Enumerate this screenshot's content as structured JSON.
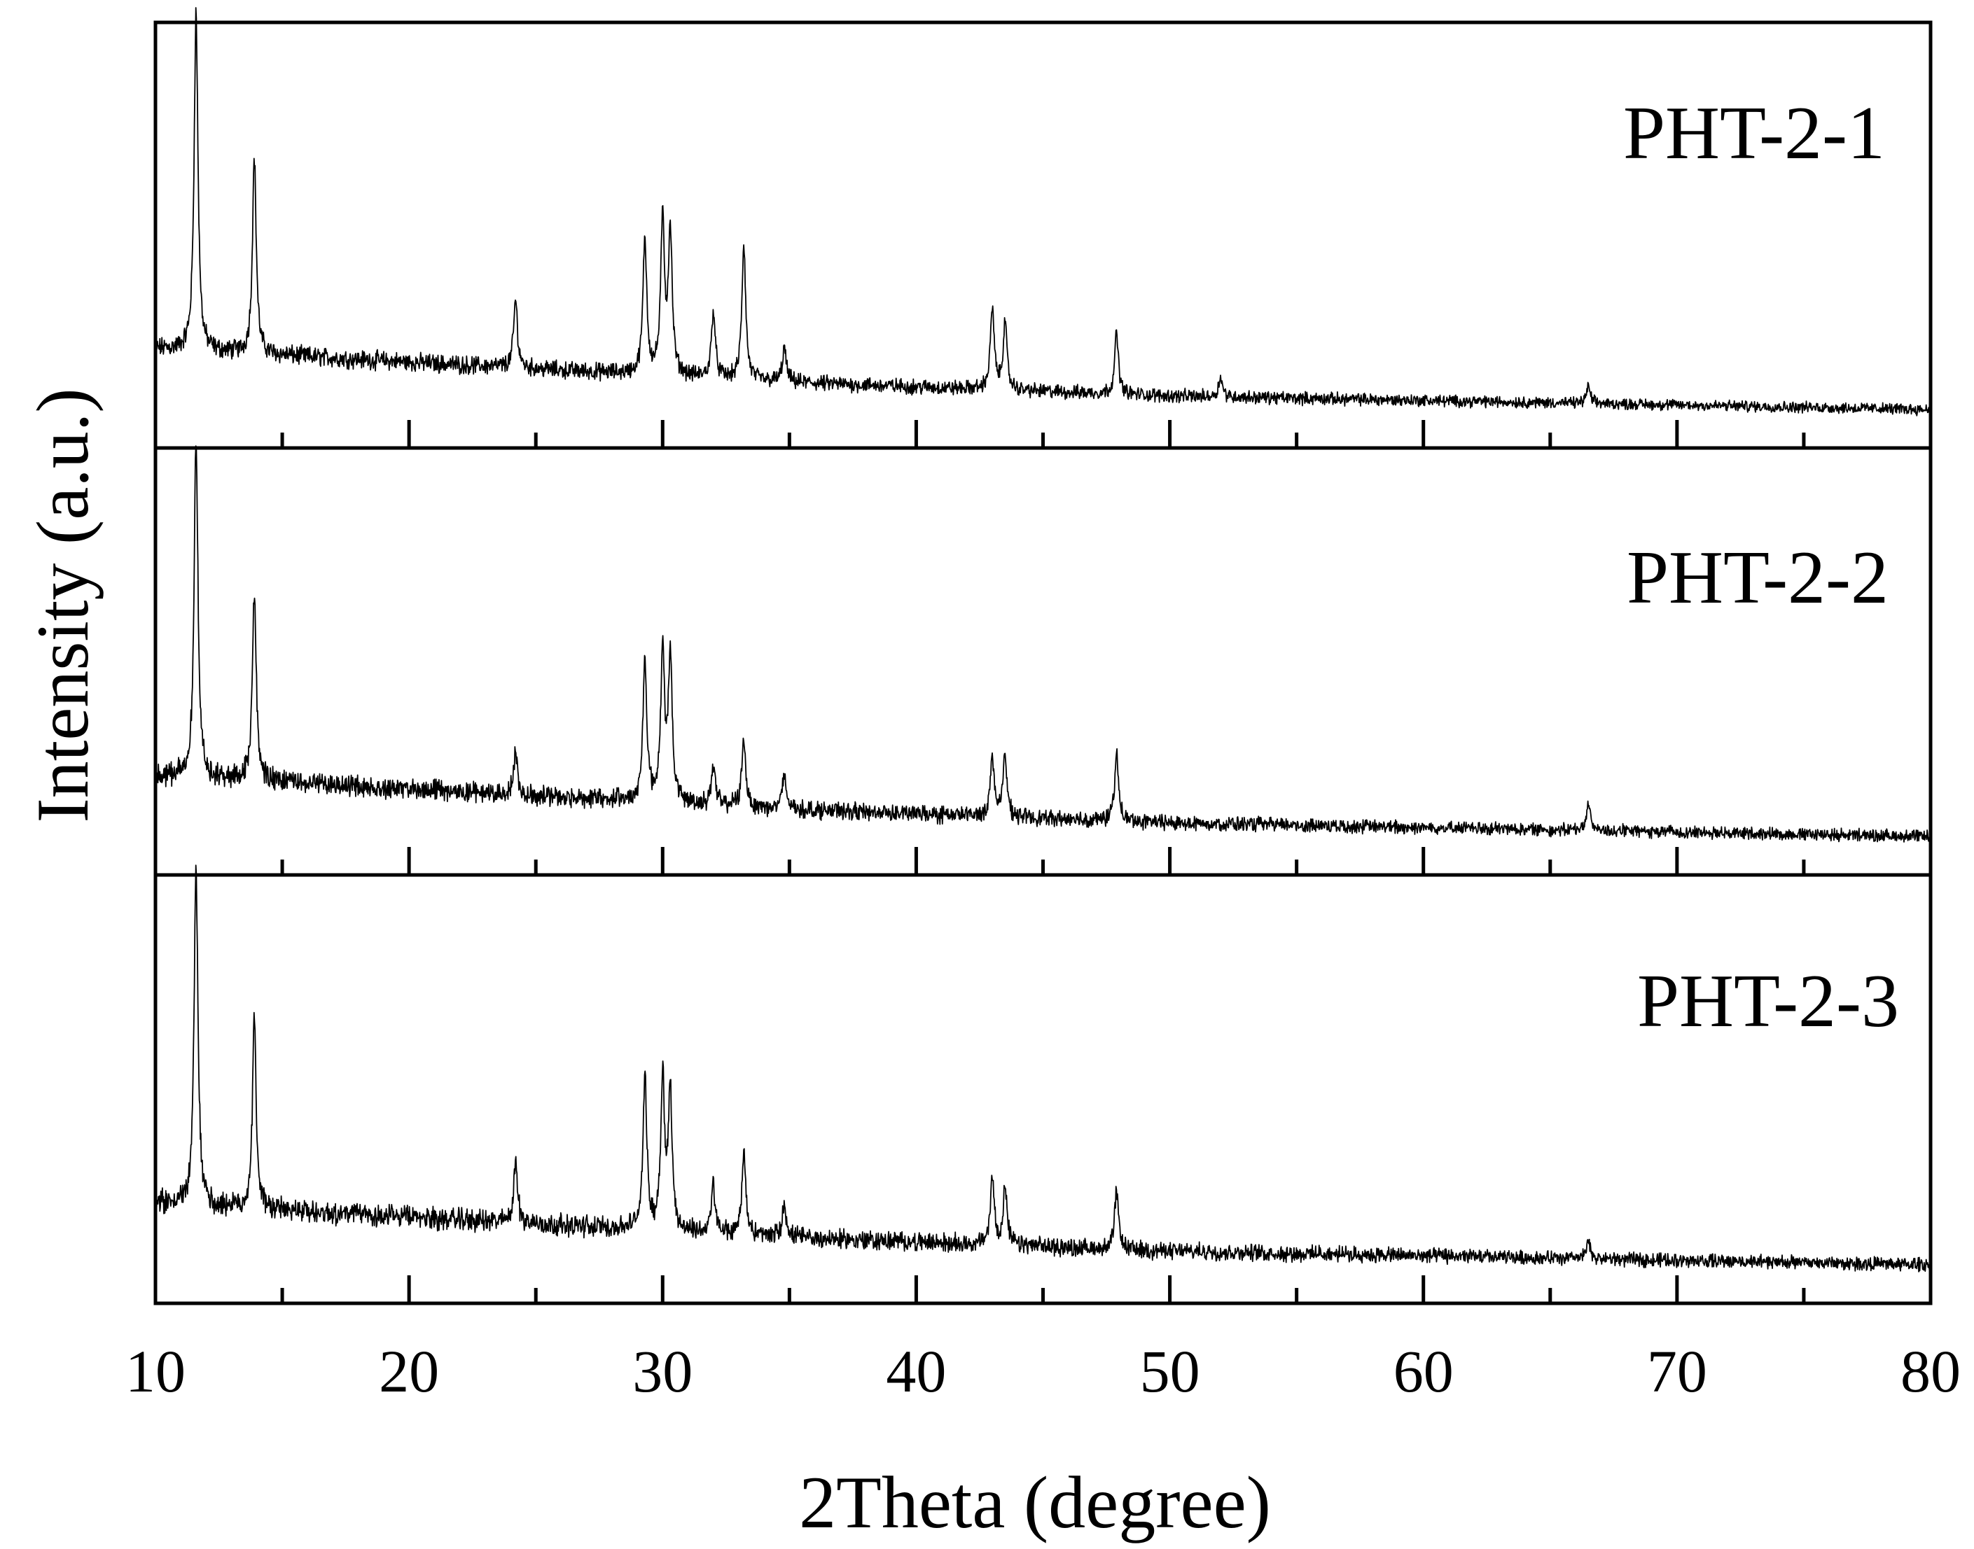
{
  "chart_data": {
    "type": "line",
    "layout": "stacked-panels",
    "xlabel": "2Theta (degree)",
    "ylabel": "Intensity (a.u.)",
    "xlim": [
      10,
      80
    ],
    "xticks": [
      10,
      20,
      30,
      40,
      50,
      60,
      70,
      80
    ],
    "xtick_labels": [
      "10",
      "20",
      "30",
      "40",
      "50",
      "60",
      "70",
      "80"
    ],
    "minor_xticks": [
      15,
      25,
      35,
      45,
      55,
      65,
      75
    ],
    "y_ticks_shown": false,
    "baseline": [
      {
        "x": 10,
        "y": 0.18
      },
      {
        "x": 15,
        "y": 0.16
      },
      {
        "x": 25,
        "y": 0.12
      },
      {
        "x": 35,
        "y": 0.08
      },
      {
        "x": 50,
        "y": 0.04
      },
      {
        "x": 65,
        "y": 0.02
      },
      {
        "x": 80,
        "y": 0.0
      }
    ],
    "series": [
      {
        "name": "PHT-2-1",
        "noise": 0.045,
        "peaks": [
          {
            "two_theta": 11.6,
            "intensity": 1.0
          },
          {
            "two_theta": 13.9,
            "intensity": 0.58
          },
          {
            "two_theta": 24.2,
            "intensity": 0.2
          },
          {
            "two_theta": 29.3,
            "intensity": 0.4
          },
          {
            "two_theta": 30.0,
            "intensity": 0.45
          },
          {
            "two_theta": 30.3,
            "intensity": 0.42
          },
          {
            "two_theta": 32.0,
            "intensity": 0.2
          },
          {
            "two_theta": 33.2,
            "intensity": 0.4
          },
          {
            "two_theta": 34.8,
            "intensity": 0.1
          },
          {
            "two_theta": 43.0,
            "intensity": 0.24
          },
          {
            "two_theta": 43.5,
            "intensity": 0.2
          },
          {
            "two_theta": 47.9,
            "intensity": 0.18
          },
          {
            "two_theta": 52.0,
            "intensity": 0.06
          },
          {
            "two_theta": 66.5,
            "intensity": 0.05
          }
        ]
      },
      {
        "name": "PHT-2-2",
        "noise": 0.05,
        "peaks": [
          {
            "two_theta": 11.6,
            "intensity": 1.0
          },
          {
            "two_theta": 13.9,
            "intensity": 0.55
          },
          {
            "two_theta": 24.2,
            "intensity": 0.12
          },
          {
            "two_theta": 29.3,
            "intensity": 0.42
          },
          {
            "two_theta": 30.0,
            "intensity": 0.45
          },
          {
            "two_theta": 30.3,
            "intensity": 0.42
          },
          {
            "two_theta": 32.0,
            "intensity": 0.12
          },
          {
            "two_theta": 33.2,
            "intensity": 0.2
          },
          {
            "two_theta": 34.8,
            "intensity": 0.1
          },
          {
            "two_theta": 43.0,
            "intensity": 0.18
          },
          {
            "two_theta": 43.5,
            "intensity": 0.18
          },
          {
            "two_theta": 47.9,
            "intensity": 0.2
          },
          {
            "two_theta": 66.5,
            "intensity": 0.08
          }
        ]
      },
      {
        "name": "PHT-2-3",
        "noise": 0.055,
        "peaks": [
          {
            "two_theta": 11.6,
            "intensity": 1.0
          },
          {
            "two_theta": 13.9,
            "intensity": 0.55
          },
          {
            "two_theta": 24.2,
            "intensity": 0.18
          },
          {
            "two_theta": 29.3,
            "intensity": 0.45
          },
          {
            "two_theta": 30.0,
            "intensity": 0.45
          },
          {
            "two_theta": 30.3,
            "intensity": 0.4
          },
          {
            "two_theta": 32.0,
            "intensity": 0.14
          },
          {
            "two_theta": 33.2,
            "intensity": 0.25
          },
          {
            "two_theta": 34.8,
            "intensity": 0.1
          },
          {
            "two_theta": 43.0,
            "intensity": 0.2
          },
          {
            "two_theta": 43.5,
            "intensity": 0.17
          },
          {
            "two_theta": 47.9,
            "intensity": 0.17
          },
          {
            "two_theta": 66.5,
            "intensity": 0.05
          }
        ]
      }
    ]
  }
}
